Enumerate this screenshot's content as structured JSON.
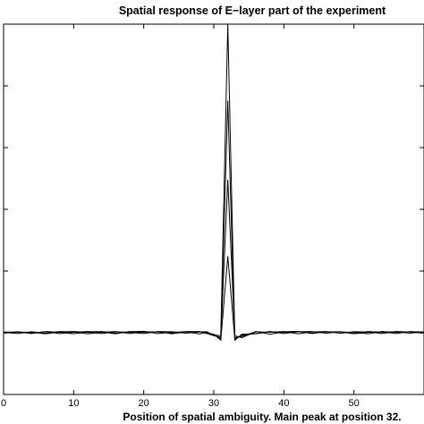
{
  "chart_data": {
    "type": "line",
    "title": "Spatial response of E−layer part of the experiment",
    "xlabel": "Position of spatial ambiguity. Main peak at position 32.",
    "ylabel": "",
    "xlim": [
      0,
      60
    ],
    "ylim": [
      -0.25,
      1.25
    ],
    "x_ticks": [
      0,
      10,
      20,
      30,
      40,
      50
    ],
    "x_tick_labels": [
      "0",
      "10",
      "20",
      "30",
      "40",
      "50"
    ],
    "y_ticks": [
      0,
      0.25,
      0.5,
      0.75,
      1.0
    ],
    "grid": false,
    "legend": "none",
    "line_color": "#000000",
    "x": [
      0,
      2,
      4,
      6,
      8,
      10,
      12,
      14,
      16,
      18,
      20,
      22,
      24,
      26,
      28,
      29,
      30,
      31,
      32,
      33,
      34,
      36,
      38,
      40,
      42,
      44,
      46,
      48,
      50,
      52,
      54,
      56,
      58,
      60
    ],
    "series": [
      {
        "values": [
          0.0,
          0.004,
          -0.003,
          0.005,
          0.002,
          -0.004,
          0.003,
          0.005,
          -0.002,
          0.004,
          0.006,
          -0.003,
          0.002,
          0.004,
          -0.005,
          0.002,
          -0.008,
          -0.012,
          1.25,
          -0.02,
          -0.015,
          0.005,
          -0.006,
          0.004,
          0.006,
          -0.003,
          0.004,
          0.003,
          0.002,
          -0.004,
          0.005,
          0.002,
          0.004,
          0.003
        ]
      },
      {
        "values": [
          0.002,
          -0.003,
          0.004,
          -0.002,
          0.005,
          0.003,
          -0.004,
          0.002,
          0.005,
          -0.003,
          0.004,
          0.003,
          -0.002,
          0.005,
          0.004,
          -0.003,
          -0.012,
          -0.018,
          0.94,
          -0.03,
          -0.006,
          -0.004,
          0.005,
          -0.003,
          0.004,
          0.005,
          -0.002,
          0.004,
          -0.003,
          0.005,
          0.002,
          0.004,
          -0.002,
          0.004
        ]
      },
      {
        "values": [
          -0.002,
          0.003,
          0.002,
          -0.004,
          0.003,
          0.005,
          0.002,
          -0.003,
          0.004,
          0.002,
          -0.003,
          0.005,
          0.004,
          -0.002,
          0.003,
          0.004,
          -0.01,
          -0.024,
          0.62,
          -0.012,
          -0.02,
          0.004,
          0.002,
          0.005,
          -0.004,
          0.003,
          0.005,
          -0.002,
          0.004,
          0.003,
          -0.003,
          0.005,
          0.003,
          -0.002
        ]
      },
      {
        "values": [
          0.003,
          0.002,
          -0.002,
          0.004,
          -0.003,
          0.002,
          0.005,
          0.003,
          -0.004,
          0.005,
          0.002,
          0.004,
          -0.004,
          0.003,
          0.005,
          -0.002,
          -0.006,
          -0.03,
          0.31,
          -0.026,
          -0.01,
          -0.003,
          0.004,
          0.002,
          0.005,
          -0.002,
          0.003,
          0.004,
          -0.004,
          0.002,
          0.004,
          -0.003,
          0.005,
          0.002
        ]
      }
    ]
  }
}
